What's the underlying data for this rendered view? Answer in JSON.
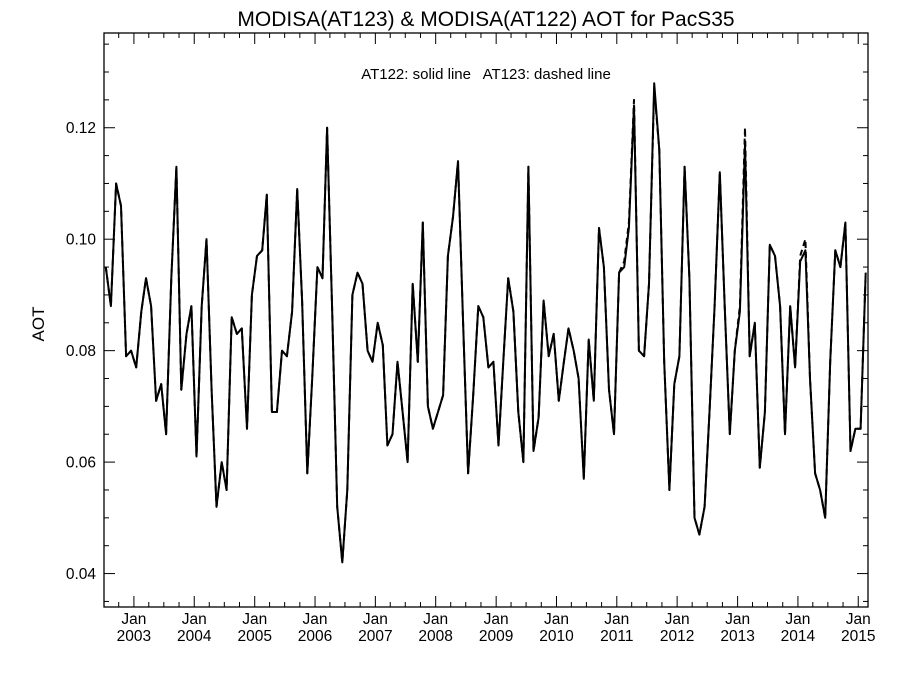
{
  "chart_data": {
    "type": "line",
    "title": "MODISA(AT123) & MODISA(AT122)  AOT for PacS35",
    "annotation": "AT122: solid line   AT123: dashed line",
    "xlabel": "",
    "ylabel": "AOT",
    "xlim": [
      "2002-07-04",
      "2015-03-01"
    ],
    "ylim": [
      0.034,
      0.137
    ],
    "yticks": [
      0.04,
      0.06,
      0.08,
      0.1,
      0.12
    ],
    "ytick_labels": [
      "0.04",
      "0.06",
      "0.08",
      "0.10",
      "0.12"
    ],
    "xticks": [
      {
        "date": "2003-01-01",
        "month": "Jan",
        "year": "2003"
      },
      {
        "date": "2004-01-01",
        "month": "Jan",
        "year": "2004"
      },
      {
        "date": "2005-01-01",
        "month": "Jan",
        "year": "2005"
      },
      {
        "date": "2006-01-01",
        "month": "Jan",
        "year": "2006"
      },
      {
        "date": "2007-01-01",
        "month": "Jan",
        "year": "2007"
      },
      {
        "date": "2008-01-01",
        "month": "Jan",
        "year": "2008"
      },
      {
        "date": "2009-01-01",
        "month": "Jan",
        "year": "2009"
      },
      {
        "date": "2010-01-01",
        "month": "Jan",
        "year": "2010"
      },
      {
        "date": "2011-01-01",
        "month": "Jan",
        "year": "2011"
      },
      {
        "date": "2012-01-01",
        "month": "Jan",
        "year": "2012"
      },
      {
        "date": "2013-01-01",
        "month": "Jan",
        "year": "2013"
      },
      {
        "date": "2014-01-01",
        "month": "Jan",
        "year": "2014"
      },
      {
        "date": "2015-01-01",
        "month": "Jan",
        "year": "2015"
      }
    ],
    "grid": false,
    "series": [
      {
        "name": "AT122",
        "style": "solid",
        "color": "#000000",
        "x": [
          "2002-07-15",
          "2002-08-15",
          "2002-09-15",
          "2002-10-15",
          "2002-11-15",
          "2002-12-15",
          "2003-01-15",
          "2003-02-15",
          "2003-03-15",
          "2003-04-15",
          "2003-05-15",
          "2003-06-15",
          "2003-07-15",
          "2003-08-15",
          "2003-09-15",
          "2003-10-15",
          "2003-11-15",
          "2003-12-15",
          "2004-01-15",
          "2004-02-15",
          "2004-03-15",
          "2004-04-15",
          "2004-05-15",
          "2004-06-15",
          "2004-07-15",
          "2004-08-15",
          "2004-09-15",
          "2004-10-15",
          "2004-11-15",
          "2004-12-15",
          "2005-01-15",
          "2005-02-15",
          "2005-03-15",
          "2005-04-15",
          "2005-05-15",
          "2005-06-15",
          "2005-07-15",
          "2005-08-15",
          "2005-09-15",
          "2005-10-15",
          "2005-11-15",
          "2005-12-15",
          "2006-01-15",
          "2006-02-15",
          "2006-03-15",
          "2006-04-15",
          "2006-05-15",
          "2006-06-15",
          "2006-07-15",
          "2006-08-15",
          "2006-09-15",
          "2006-10-15",
          "2006-11-15",
          "2006-12-15",
          "2007-01-15",
          "2007-02-15",
          "2007-03-15",
          "2007-04-15",
          "2007-05-15",
          "2007-06-15",
          "2007-07-15",
          "2007-08-15",
          "2007-09-15",
          "2007-10-15",
          "2007-11-15",
          "2007-12-15",
          "2008-01-15",
          "2008-02-15",
          "2008-03-15",
          "2008-04-15",
          "2008-05-15",
          "2008-06-15",
          "2008-07-15",
          "2008-08-15",
          "2008-09-15",
          "2008-10-15",
          "2008-11-15",
          "2008-12-15",
          "2009-01-15",
          "2009-02-15",
          "2009-03-15",
          "2009-04-15",
          "2009-05-15",
          "2009-06-15",
          "2009-07-15",
          "2009-08-15",
          "2009-09-15",
          "2009-10-15",
          "2009-11-15",
          "2009-12-15",
          "2010-01-15",
          "2010-02-15",
          "2010-03-15",
          "2010-04-15",
          "2010-05-15",
          "2010-06-15",
          "2010-07-15",
          "2010-08-15",
          "2010-09-15",
          "2010-10-15",
          "2010-11-15",
          "2010-12-15",
          "2011-01-15",
          "2011-02-15",
          "2011-03-15",
          "2011-04-15",
          "2011-05-15",
          "2011-06-15",
          "2011-07-15",
          "2011-08-15",
          "2011-09-15",
          "2011-10-15",
          "2011-11-15",
          "2011-12-15",
          "2012-01-15",
          "2012-02-15",
          "2012-03-15",
          "2012-04-15",
          "2012-05-15",
          "2012-06-15",
          "2012-07-15",
          "2012-08-15",
          "2012-09-15",
          "2012-10-15",
          "2012-11-15",
          "2012-12-15",
          "2013-01-15",
          "2013-02-15",
          "2013-03-15",
          "2013-04-15",
          "2013-05-15",
          "2013-06-15",
          "2013-07-15",
          "2013-08-15",
          "2013-09-15",
          "2013-10-15",
          "2013-11-15",
          "2013-12-15",
          "2014-01-15",
          "2014-02-15",
          "2014-03-15",
          "2014-04-15",
          "2014-05-15",
          "2014-06-15",
          "2014-07-15",
          "2014-08-15",
          "2014-09-15",
          "2014-10-15",
          "2014-11-15",
          "2014-12-15",
          "2015-01-15",
          "2015-02-15"
        ],
        "values": [
          0.095,
          0.088,
          0.11,
          0.106,
          0.079,
          0.08,
          0.077,
          0.087,
          0.093,
          0.088,
          0.071,
          0.074,
          0.065,
          0.093,
          0.113,
          0.073,
          0.083,
          0.088,
          0.061,
          0.088,
          0.1,
          0.073,
          0.052,
          0.06,
          0.055,
          0.086,
          0.083,
          0.084,
          0.066,
          0.09,
          0.097,
          0.098,
          0.108,
          0.069,
          0.069,
          0.08,
          0.079,
          0.087,
          0.109,
          0.089,
          0.058,
          0.075,
          0.095,
          0.093,
          0.12,
          0.087,
          0.052,
          0.042,
          0.055,
          0.09,
          0.094,
          0.092,
          0.08,
          0.078,
          0.085,
          0.081,
          0.063,
          0.065,
          0.078,
          0.069,
          0.06,
          0.092,
          0.078,
          0.103,
          0.07,
          0.066,
          0.069,
          0.072,
          0.097,
          0.104,
          0.114,
          0.085,
          0.058,
          0.072,
          0.088,
          0.086,
          0.077,
          0.078,
          0.063,
          0.079,
          0.093,
          0.087,
          0.069,
          0.06,
          0.113,
          0.062,
          0.068,
          0.089,
          0.079,
          0.083,
          0.071,
          0.078,
          0.084,
          0.08,
          0.075,
          0.057,
          0.082,
          0.071,
          0.102,
          0.095,
          0.073,
          0.065,
          0.094,
          0.095,
          0.102,
          0.124,
          0.08,
          0.079,
          0.092,
          0.128,
          0.116,
          0.078,
          0.055,
          0.074,
          0.079,
          0.113,
          0.093,
          0.05,
          0.047,
          0.052,
          0.069,
          0.088,
          0.112,
          0.088,
          0.065,
          0.08,
          0.087,
          0.117,
          0.079,
          0.085,
          0.059,
          0.069,
          0.099,
          0.097,
          0.088,
          0.065,
          0.088,
          0.077,
          0.096,
          0.098,
          0.075,
          0.058,
          0.055,
          0.05,
          0.078,
          0.098,
          0.095,
          0.103,
          0.062,
          0.066,
          0.066,
          0.094
        ]
      },
      {
        "name": "AT123",
        "style": "dashed",
        "color": "#000000",
        "x": [
          "2002-07-15",
          "2002-08-15",
          "2002-09-15",
          "2002-10-15",
          "2002-11-15",
          "2002-12-15",
          "2003-01-15",
          "2003-02-15",
          "2003-03-15",
          "2003-04-15",
          "2003-05-15",
          "2003-06-15",
          "2003-07-15",
          "2003-08-15",
          "2003-09-15",
          "2003-10-15",
          "2003-11-15",
          "2003-12-15",
          "2004-01-15",
          "2004-02-15",
          "2004-03-15",
          "2004-04-15",
          "2004-05-15",
          "2004-06-15",
          "2004-07-15",
          "2004-08-15",
          "2004-09-15",
          "2004-10-15",
          "2004-11-15",
          "2004-12-15",
          "2005-01-15",
          "2005-02-15",
          "2005-03-15",
          "2005-04-15",
          "2005-05-15",
          "2005-06-15",
          "2005-07-15",
          "2005-08-15",
          "2005-09-15",
          "2005-10-15",
          "2005-11-15",
          "2005-12-15",
          "2006-01-15",
          "2006-02-15",
          "2006-03-15",
          "2006-04-15",
          "2006-05-15",
          "2006-06-15",
          "2006-07-15",
          "2006-08-15",
          "2006-09-15",
          "2006-10-15",
          "2006-11-15",
          "2006-12-15",
          "2007-01-15",
          "2007-02-15",
          "2007-03-15",
          "2007-04-15",
          "2007-05-15",
          "2007-06-15",
          "2007-07-15",
          "2007-08-15",
          "2007-09-15",
          "2007-10-15",
          "2007-11-15",
          "2007-12-15",
          "2008-01-15",
          "2008-02-15",
          "2008-03-15",
          "2008-04-15",
          "2008-05-15",
          "2008-06-15",
          "2008-07-15",
          "2008-08-15",
          "2008-09-15",
          "2008-10-15",
          "2008-11-15",
          "2008-12-15",
          "2009-01-15",
          "2009-02-15",
          "2009-03-15",
          "2009-04-15",
          "2009-05-15",
          "2009-06-15",
          "2009-07-15",
          "2009-08-15",
          "2009-09-15",
          "2009-10-15",
          "2009-11-15",
          "2009-12-15",
          "2010-01-15",
          "2010-02-15",
          "2010-03-15",
          "2010-04-15",
          "2010-05-15",
          "2010-06-15",
          "2010-07-15",
          "2010-08-15",
          "2010-09-15",
          "2010-10-15",
          "2010-11-15",
          "2010-12-15",
          "2011-01-15",
          "2011-02-15",
          "2011-03-15",
          "2011-04-15",
          "2011-05-15",
          "2011-06-15",
          "2011-07-15",
          "2011-08-15",
          "2011-09-15",
          "2011-10-15",
          "2011-11-15",
          "2011-12-15",
          "2012-01-15",
          "2012-02-15",
          "2012-03-15",
          "2012-04-15",
          "2012-05-15",
          "2012-06-15",
          "2012-07-15",
          "2012-08-15",
          "2012-09-15",
          "2012-10-15",
          "2012-11-15",
          "2012-12-15",
          "2013-01-15",
          "2013-02-15",
          "2013-03-15",
          "2013-04-15",
          "2013-05-15",
          "2013-06-15",
          "2013-07-15",
          "2013-08-15",
          "2013-09-15",
          "2013-10-15",
          "2013-11-15",
          "2013-12-15",
          "2014-01-15",
          "2014-02-15",
          "2014-03-15",
          "2014-04-15",
          "2014-05-15",
          "2014-06-15",
          "2014-07-15",
          "2014-08-15",
          "2014-09-15",
          "2014-10-15",
          "2014-11-15",
          "2014-12-15",
          "2015-01-15",
          "2015-02-15"
        ],
        "values": [
          0.095,
          0.088,
          0.11,
          0.106,
          0.079,
          0.08,
          0.077,
          0.087,
          0.093,
          0.088,
          0.071,
          0.074,
          0.065,
          0.093,
          0.113,
          0.073,
          0.083,
          0.088,
          0.061,
          0.088,
          0.1,
          0.073,
          0.052,
          0.06,
          0.055,
          0.086,
          0.083,
          0.084,
          0.066,
          0.09,
          0.097,
          0.098,
          0.108,
          0.069,
          0.069,
          0.08,
          0.079,
          0.087,
          0.109,
          0.089,
          0.058,
          0.075,
          0.095,
          0.093,
          0.12,
          0.087,
          0.052,
          0.042,
          0.055,
          0.09,
          0.094,
          0.092,
          0.08,
          0.078,
          0.085,
          0.081,
          0.063,
          0.065,
          0.078,
          0.069,
          0.06,
          0.092,
          0.078,
          0.103,
          0.07,
          0.066,
          0.069,
          0.072,
          0.097,
          0.104,
          0.114,
          0.085,
          0.058,
          0.072,
          0.088,
          0.086,
          0.077,
          0.078,
          0.063,
          0.079,
          0.093,
          0.087,
          0.069,
          0.06,
          0.113,
          0.062,
          0.068,
          0.089,
          0.079,
          0.083,
          0.071,
          0.078,
          0.084,
          0.08,
          0.075,
          0.057,
          0.082,
          0.071,
          0.102,
          0.095,
          0.073,
          0.065,
          0.094,
          0.096,
          0.103,
          0.125,
          0.08,
          0.079,
          0.092,
          0.127,
          0.116,
          0.078,
          0.055,
          0.074,
          0.079,
          0.113,
          0.093,
          0.05,
          0.047,
          0.052,
          0.069,
          0.088,
          0.112,
          0.088,
          0.065,
          0.08,
          0.088,
          0.12,
          0.079,
          0.085,
          0.059,
          0.069,
          0.099,
          0.097,
          0.088,
          0.065,
          0.088,
          0.077,
          0.097,
          0.1,
          0.075,
          0.058,
          0.055,
          0.05,
          0.078,
          0.098,
          0.095,
          0.103,
          0.062,
          0.066,
          0.066,
          0.094
        ]
      }
    ]
  }
}
